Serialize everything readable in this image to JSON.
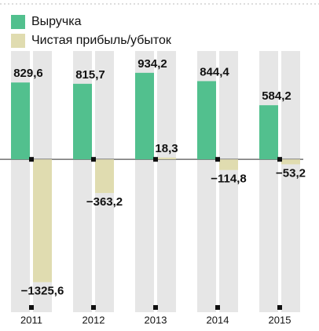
{
  "chart_data": {
    "type": "bar",
    "categories": [
      "2011",
      "2012",
      "2013",
      "2014",
      "2015"
    ],
    "series": [
      {
        "name": "Выручка",
        "color": "#52c08e",
        "values": [
          829.6,
          815.7,
          934.2,
          844.4,
          584.2
        ],
        "value_labels": [
          "829,6",
          "815,7",
          "934,2",
          "844,4",
          "584,2"
        ]
      },
      {
        "name": "Чистая прибыль/убыток",
        "color": "#e0dcb0",
        "values": [
          -1325.6,
          -363.2,
          18.3,
          -114.8,
          -53.2
        ],
        "value_labels": [
          "−1325,6",
          "−363,2",
          "18,3",
          "−114,8",
          "−53,2"
        ]
      }
    ],
    "ylim": [
      -1650,
      1170
    ]
  }
}
